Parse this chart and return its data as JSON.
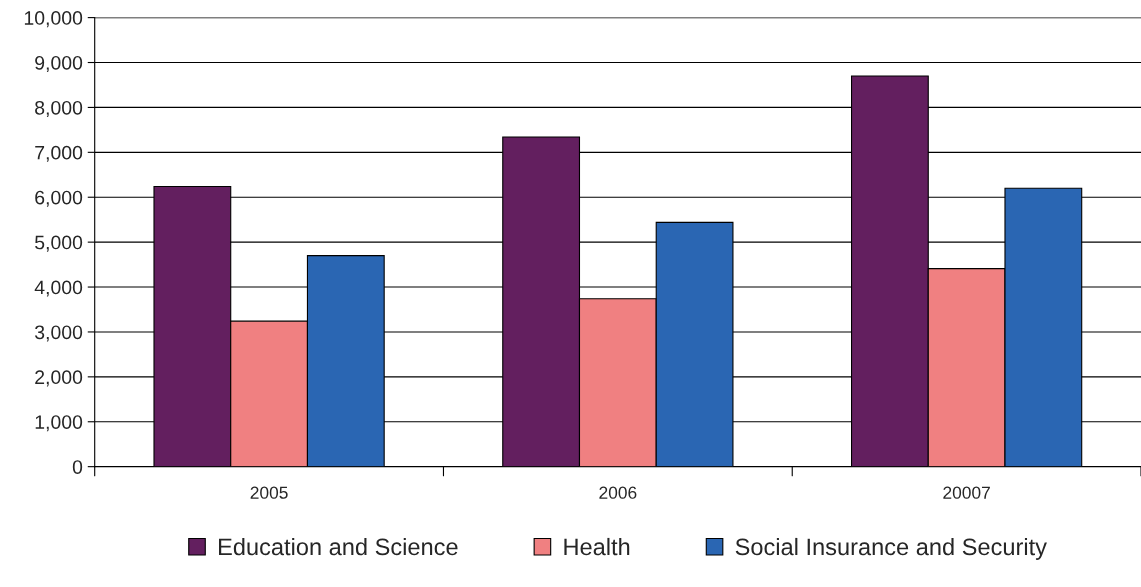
{
  "chart_data": {
    "type": "bar",
    "categories": [
      "2005",
      "2006",
      "20007"
    ],
    "series": [
      {
        "name": "Education and Science",
        "color": "#631f5f",
        "values": [
          6240,
          7340,
          8700
        ]
      },
      {
        "name": "Health",
        "color": "#f08081",
        "values": [
          3240,
          3740,
          4410
        ]
      },
      {
        "name": "Social Insurance and Security",
        "color": "#2a66b3",
        "values": [
          4700,
          5440,
          6200
        ]
      }
    ],
    "ylim": [
      0,
      10000
    ],
    "yticks": [
      {
        "value": 0,
        "label": "0"
      },
      {
        "value": 1000,
        "label": "1,000"
      },
      {
        "value": 2000,
        "label": "2,000"
      },
      {
        "value": 3000,
        "label": "3,000"
      },
      {
        "value": 4000,
        "label": "4,000"
      },
      {
        "value": 5000,
        "label": "5,000"
      },
      {
        "value": 6000,
        "label": "6,000"
      },
      {
        "value": 7000,
        "label": "7,000"
      },
      {
        "value": 8000,
        "label": "8,000"
      },
      {
        "value": 9000,
        "label": "9,000"
      },
      {
        "value": 10000,
        "label": "10,000"
      }
    ],
    "grid": "y",
    "legend": "bottom"
  }
}
